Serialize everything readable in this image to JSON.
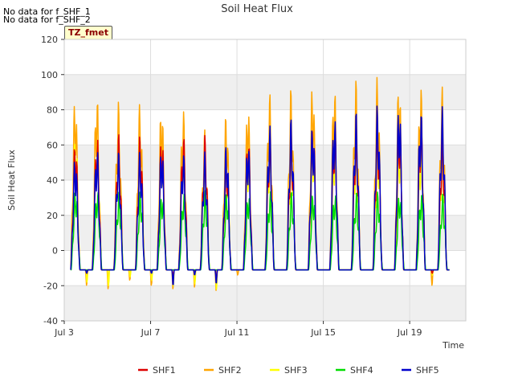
{
  "notes": [
    "No data for f_SHF_1",
    "No data for f_SHF_2"
  ],
  "tag_label": "TZ_fmet",
  "chart_data": {
    "type": "line",
    "title": "Soil Heat Flux",
    "xlabel": "Time",
    "ylabel": "Soil Heat Flux",
    "ylim": [
      -40,
      120
    ],
    "yticks": [
      -40,
      -20,
      0,
      20,
      40,
      60,
      80,
      100,
      120
    ],
    "xlim_day": [
      3.0,
      21.6
    ],
    "xticks": [
      {
        "day": 3,
        "label": "Jul 3"
      },
      {
        "day": 7,
        "label": "Jul 7"
      },
      {
        "day": 11,
        "label": "Jul 11"
      },
      {
        "day": 15,
        "label": "Jul 15"
      },
      {
        "day": 19,
        "label": "Jul 19"
      }
    ],
    "grid": true,
    "legend_position": "bottom",
    "day_start": 3.3,
    "day_end": 20.85,
    "series": [
      {
        "name": "SHF1",
        "color": "#dd0000",
        "peaks": [
          64,
          67,
          67,
          67,
          67,
          67,
          66,
          56,
          67,
          67,
          68,
          75,
          73,
          72,
          73,
          78,
          78,
          67
        ],
        "mins": [
          -17,
          -13,
          -11,
          -11,
          -12,
          -15,
          -12,
          -17,
          -11,
          -11,
          -11,
          -11,
          -11,
          -11,
          -11,
          -11,
          -11,
          -13
        ]
      },
      {
        "name": "SHF2",
        "color": "#ffa500",
        "peaks": [
          89,
          91,
          85,
          85,
          85,
          82,
          69,
          80,
          85,
          91,
          93,
          97,
          96,
          98,
          100,
          99,
          96,
          93
        ],
        "mins": [
          -22,
          -20,
          -22,
          -17,
          -20,
          -22,
          -21,
          -23,
          -14,
          -11,
          -11,
          -11,
          -11,
          -11,
          -11,
          -11,
          -11,
          -20
        ]
      },
      {
        "name": "SHF3",
        "color": "#ffff00",
        "peaks": [
          67,
          67,
          66,
          66,
          62,
          62,
          56,
          55,
          58,
          60,
          62,
          66,
          64,
          64,
          65,
          66,
          62,
          60
        ],
        "mins": [
          -21,
          -18,
          -20,
          -15,
          -17,
          -20,
          -19,
          -22,
          -11,
          -11,
          -11,
          -11,
          -11,
          -11,
          -11,
          -11,
          -11,
          -14
        ]
      },
      {
        "name": "SHF4",
        "color": "#00dd00",
        "peaks": [
          36,
          36,
          34,
          34,
          34,
          34,
          34,
          34,
          34,
          34,
          34,
          34,
          34,
          34,
          34,
          34,
          34,
          32
        ],
        "mins": [
          -11,
          -11,
          -11,
          -11,
          -11,
          -11,
          -11,
          -11,
          -11,
          -11,
          -11,
          -11,
          -11,
          -11,
          -11,
          -11,
          -11,
          -11
        ]
      },
      {
        "name": "SHF5",
        "color": "#0000cc",
        "peaks": [
          55,
          60,
          57,
          57,
          61,
          57,
          56,
          62,
          64,
          72,
          76,
          74,
          79,
          80,
          84,
          86,
          82,
          82
        ],
        "mins": [
          -20,
          -13,
          -11,
          -11,
          -13,
          -20,
          -14,
          -19,
          -11,
          -11,
          -11,
          -11,
          -11,
          -11,
          -11,
          -11,
          -11,
          -11
        ]
      }
    ]
  }
}
